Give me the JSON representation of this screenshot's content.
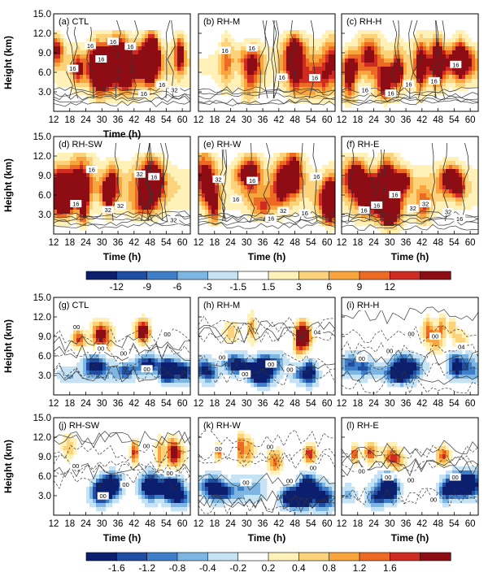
{
  "figure": {
    "y_axis_label": "Height (km)",
    "x_axis_label": "Time (h)",
    "y_ticks": [
      "3.0",
      "6.0",
      "9.0",
      "12.0",
      "15.0"
    ],
    "x_ticks": [
      "12",
      "18",
      "24",
      "30",
      "36",
      "42",
      "48",
      "54",
      "60"
    ],
    "colorbar_top": {
      "labels": [
        "-12",
        "-9",
        "-6",
        "-3",
        "-1.5",
        "1.5",
        "3",
        "6",
        "9",
        "12"
      ],
      "colors": [
        "#0b1f6e",
        "#1f4ea3",
        "#3f7fc9",
        "#7db6e3",
        "#c6e2f5",
        "#ffffff",
        "#fff1b8",
        "#fcd27a",
        "#f7a53c",
        "#ec6a24",
        "#d02b23",
        "#8e0d14"
      ]
    },
    "colorbar_bottom": {
      "labels": [
        "-1.6",
        "-1.2",
        "-0.8",
        "-0.4",
        "-0.2",
        "0.2",
        "0.4",
        "0.8",
        "1.2",
        "1.6"
      ],
      "colors": [
        "#0b1f6e",
        "#1f4ea3",
        "#3f7fc9",
        "#7db6e3",
        "#c6e2f5",
        "#ffffff",
        "#fff1b8",
        "#fcd27a",
        "#f7a53c",
        "#ec6a24",
        "#d02b23",
        "#8e0d14"
      ]
    }
  },
  "chart_data": [
    {
      "type": "heatmap",
      "panel": "(a) CTL",
      "group": "top",
      "xlabel": "Time (h)",
      "ylabel": "Height (km)",
      "xlim": [
        12,
        63
      ],
      "ylim": [
        0,
        15
      ],
      "contour_labels": [
        "16",
        "16",
        "16",
        "16",
        "16",
        "16",
        "16",
        "32"
      ]
    },
    {
      "type": "heatmap",
      "panel": "(b) RH-M",
      "group": "top",
      "xlabel": "",
      "ylabel": "",
      "xlim": [
        12,
        63
      ],
      "ylim": [
        0,
        15
      ],
      "contour_labels": [
        "16",
        "16",
        "16",
        "16"
      ]
    },
    {
      "type": "heatmap",
      "panel": "(c) RH-H",
      "group": "top",
      "xlabel": "",
      "ylabel": "",
      "xlim": [
        12,
        63
      ],
      "ylim": [
        0,
        15
      ],
      "contour_labels": [
        "16",
        "16",
        "16",
        "16",
        "16"
      ]
    },
    {
      "type": "heatmap",
      "panel": "(d) RH-SW",
      "group": "top",
      "xlabel": "Time (h)",
      "ylabel": "Height (km)",
      "xlim": [
        12,
        63
      ],
      "ylim": [
        0,
        15
      ],
      "contour_labels": [
        "16",
        "16",
        "32",
        "32",
        "32",
        "16",
        "32"
      ]
    },
    {
      "type": "heatmap",
      "panel": "(e) RH-W",
      "group": "top",
      "xlabel": "Time (h)",
      "ylabel": "",
      "xlim": [
        12,
        63
      ],
      "ylim": [
        0,
        15
      ],
      "contour_labels": [
        "32",
        "16",
        "16",
        "16",
        "32",
        "16",
        "16"
      ]
    },
    {
      "type": "heatmap",
      "panel": "(f) RH-E",
      "group": "top",
      "xlabel": "Time (h)",
      "ylabel": "",
      "xlim": [
        12,
        63
      ],
      "ylim": [
        0,
        15
      ],
      "contour_labels": [
        "16",
        "16",
        "16",
        "32",
        "32",
        "32",
        "16"
      ]
    },
    {
      "type": "heatmap",
      "panel": "(g) CTL",
      "group": "bottom",
      "xlabel": "",
      "ylabel": "Height (km)",
      "xlim": [
        12,
        63
      ],
      "ylim": [
        0,
        15
      ],
      "contour_labels": [
        "00",
        "00",
        "00",
        "00",
        "00"
      ]
    },
    {
      "type": "heatmap",
      "panel": "(h) RH-M",
      "group": "bottom",
      "xlabel": "",
      "ylabel": "",
      "xlim": [
        12,
        63
      ],
      "ylim": [
        0,
        15
      ],
      "contour_labels": [
        "00",
        "00",
        "00",
        "00",
        "04"
      ]
    },
    {
      "type": "heatmap",
      "panel": "(i) RH-H",
      "group": "bottom",
      "xlabel": "",
      "ylabel": "",
      "xlim": [
        12,
        63
      ],
      "ylim": [
        0,
        15
      ],
      "contour_labels": [
        "00",
        "00",
        "00",
        "00",
        "04"
      ]
    },
    {
      "type": "heatmap",
      "panel": "(j) RH-SW",
      "group": "bottom",
      "xlabel": "Time (h)",
      "ylabel": "Height (km)",
      "xlim": [
        12,
        63
      ],
      "ylim": [
        0,
        15
      ],
      "contour_labels": [
        "00",
        "00",
        "00",
        "00",
        "00"
      ]
    },
    {
      "type": "heatmap",
      "panel": "(k) RH-W",
      "group": "bottom",
      "xlabel": "Time (h)",
      "ylabel": "",
      "xlim": [
        12,
        63
      ],
      "ylim": [
        0,
        15
      ],
      "contour_labels": [
        "00",
        "00",
        "00",
        "00",
        "00"
      ]
    },
    {
      "type": "heatmap",
      "panel": "(l) RH-E",
      "group": "bottom",
      "xlabel": "Time (h)",
      "ylabel": "",
      "xlim": [
        12,
        63
      ],
      "ylim": [
        0,
        15
      ],
      "contour_labels": [
        "00",
        "00",
        "00",
        "00",
        "00"
      ]
    }
  ]
}
